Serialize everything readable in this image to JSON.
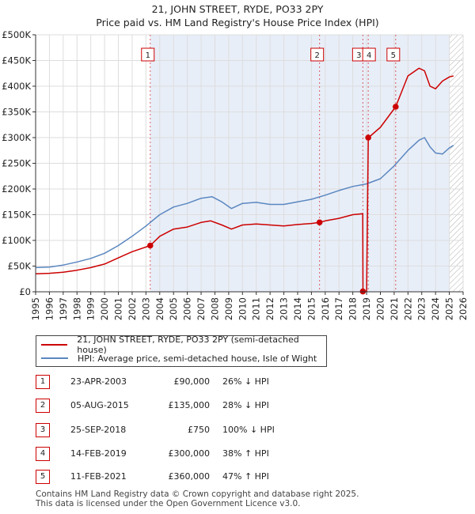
{
  "header": {
    "title": "21, JOHN STREET, RYDE, PO33 2PY",
    "subtitle": "Price paid vs. HM Land Registry's House Price Index (HPI)"
  },
  "colors": {
    "property": "#cc0000",
    "hpi": "#5b87c0",
    "shade": "#e8eef8",
    "grid": "#ffffff",
    "marker_line": "#cc0000"
  },
  "chart_data": {
    "type": "line",
    "title": "21, JOHN STREET, RYDE, PO33 2PY",
    "subtitle": "Price paid vs. HM Land Registry's House Price Index (HPI)",
    "xlim": [
      1995,
      2026
    ],
    "ylim": [
      0,
      500000
    ],
    "x_ticks": [
      1995,
      1996,
      1997,
      1998,
      1999,
      2000,
      2001,
      2002,
      2003,
      2004,
      2005,
      2006,
      2007,
      2008,
      2009,
      2010,
      2011,
      2012,
      2013,
      2014,
      2015,
      2016,
      2017,
      2018,
      2019,
      2020,
      2021,
      2022,
      2023,
      2024,
      2025,
      2026
    ],
    "y_ticks": [
      0,
      50000,
      100000,
      150000,
      200000,
      250000,
      300000,
      350000,
      400000,
      450000,
      500000
    ],
    "y_tick_labels": [
      "£0",
      "£50K",
      "£100K",
      "£150K",
      "£200K",
      "£250K",
      "£300K",
      "£350K",
      "£400K",
      "£450K",
      "£500K"
    ],
    "grid": true,
    "legend_position": "below",
    "shaded_from": 2003.31,
    "hatched_from": 2025.0,
    "series": [
      {
        "name": "21, JOHN STREET, RYDE, PO33 2PY (semi-detached house)",
        "color": "#cc0000",
        "x": [
          1995,
          1996,
          1997,
          1998,
          1999,
          2000,
          2001,
          2002,
          2003.31,
          2004,
          2005,
          2006,
          2007,
          2007.7,
          2008.5,
          2009.2,
          2010,
          2011,
          2012,
          2013,
          2014,
          2015,
          2015.59,
          2016,
          2017,
          2018,
          2018.72,
          2018.74,
          2019.0,
          2019.12,
          2019.14,
          2020,
          2021.11,
          2022,
          2022.8,
          2023.2,
          2023.6,
          2024,
          2024.5,
          2025,
          2025.3
        ],
        "y": [
          35000,
          36000,
          38000,
          42000,
          47000,
          54000,
          66000,
          78000,
          90000,
          108000,
          122000,
          126000,
          135000,
          138000,
          130000,
          122000,
          130000,
          132000,
          130000,
          128000,
          131000,
          133000,
          135000,
          138000,
          143000,
          150000,
          152000,
          750,
          750,
          300000,
          300000,
          320000,
          360000,
          420000,
          435000,
          430000,
          400000,
          395000,
          410000,
          418000,
          420000
        ]
      },
      {
        "name": "HPI: Average price, semi-detached house, Isle of Wight",
        "color": "#5b87c0",
        "x": [
          1995,
          1996,
          1997,
          1998,
          1999,
          2000,
          2001,
          2002,
          2003,
          2004,
          2005,
          2006,
          2007,
          2007.8,
          2008.5,
          2009.2,
          2010,
          2011,
          2012,
          2013,
          2014,
          2015,
          2016,
          2017,
          2018,
          2019,
          2020,
          2021,
          2022,
          2022.8,
          2023.2,
          2023.6,
          2024,
          2024.5,
          2025,
          2025.3
        ],
        "y": [
          47000,
          48000,
          52000,
          58000,
          65000,
          75000,
          90000,
          108000,
          128000,
          150000,
          165000,
          172000,
          182000,
          185000,
          175000,
          162000,
          172000,
          174000,
          170000,
          170000,
          175000,
          180000,
          188000,
          197000,
          205000,
          210000,
          220000,
          245000,
          275000,
          295000,
          300000,
          282000,
          270000,
          268000,
          280000,
          285000
        ]
      }
    ],
    "markers": [
      {
        "label": "1",
        "x": 2003.31,
        "y": 90000
      },
      {
        "label": "2",
        "x": 2015.59,
        "y": 135000
      },
      {
        "label": "3",
        "x": 2018.73,
        "y": 750
      },
      {
        "label": "4",
        "x": 2019.12,
        "y": 300000
      },
      {
        "label": "5",
        "x": 2021.11,
        "y": 360000
      }
    ]
  },
  "legend": {
    "property_label": "21, JOHN STREET, RYDE, PO33 2PY (semi-detached house)",
    "hpi_label": "HPI: Average price, semi-detached house, Isle of Wight"
  },
  "transactions": [
    {
      "num": "1",
      "date": "23-APR-2003",
      "price": "£90,000",
      "hpi": "26% ↓ HPI"
    },
    {
      "num": "2",
      "date": "05-AUG-2015",
      "price": "£135,000",
      "hpi": "28% ↓ HPI"
    },
    {
      "num": "3",
      "date": "25-SEP-2018",
      "price": "£750",
      "hpi": "100% ↓ HPI"
    },
    {
      "num": "4",
      "date": "14-FEB-2019",
      "price": "£300,000",
      "hpi": "38% ↑ HPI"
    },
    {
      "num": "5",
      "date": "11-FEB-2021",
      "price": "£360,000",
      "hpi": "47% ↑ HPI"
    }
  ],
  "footer": {
    "line1": "Contains HM Land Registry data © Crown copyright and database right 2025.",
    "line2": "This data is licensed under the Open Government Licence v3.0."
  }
}
